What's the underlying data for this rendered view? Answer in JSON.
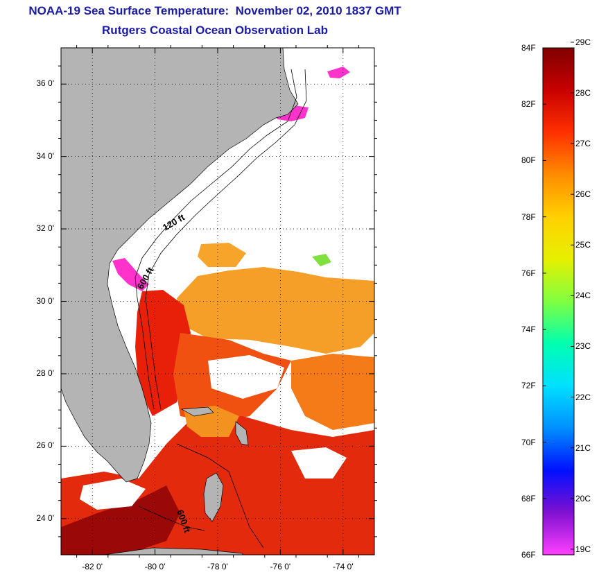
{
  "title": "NOAA-19 Sea Surface Temperature:  November 02, 2010 1837 GMT",
  "subtitle": "Rutgers Coastal Ocean Observation Lab",
  "map": {
    "lat_labels": [
      "36 0'",
      "34 0'",
      "32 0'",
      "30 0'",
      "28 0'",
      "26 0'",
      "24 0'"
    ],
    "lon_labels": [
      "-82 0'",
      "-80 0'",
      "-78 0'",
      "-76 0'",
      "-74 0'"
    ],
    "lat_values": [
      36,
      34,
      32,
      30,
      28,
      26,
      24
    ],
    "lon_values": [
      -82,
      -80,
      -78,
      -76,
      -74
    ],
    "lat_range": [
      23,
      37
    ],
    "lon_range": [
      -83,
      -73
    ],
    "contour_labels": [
      "120 ft",
      "600 ft",
      "600 ft"
    ],
    "land_color": "#b4b4b4",
    "grid": "dotted"
  },
  "colorbar": {
    "f_labels": [
      "84F",
      "82F",
      "80F",
      "78F",
      "76F",
      "74F",
      "72F",
      "70F",
      "68F",
      "66F"
    ],
    "c_labels": [
      "29C",
      "28C",
      "27C",
      "26C",
      "25C",
      "24C",
      "23C",
      "22C",
      "21C",
      "20C",
      "19C"
    ],
    "f_values": [
      84,
      82,
      80,
      78,
      76,
      74,
      72,
      70,
      68,
      66
    ],
    "c_values": [
      29,
      28,
      27,
      26,
      25,
      24,
      23,
      22,
      21,
      20,
      19
    ],
    "colors": [
      "#800000",
      "#c80000",
      "#ff3000",
      "#ff8c00",
      "#ffd000",
      "#e6f000",
      "#80ff40",
      "#00ffb0",
      "#00e0ff",
      "#0090ff",
      "#0010ff",
      "#8010d0",
      "#ff40ff"
    ]
  }
}
